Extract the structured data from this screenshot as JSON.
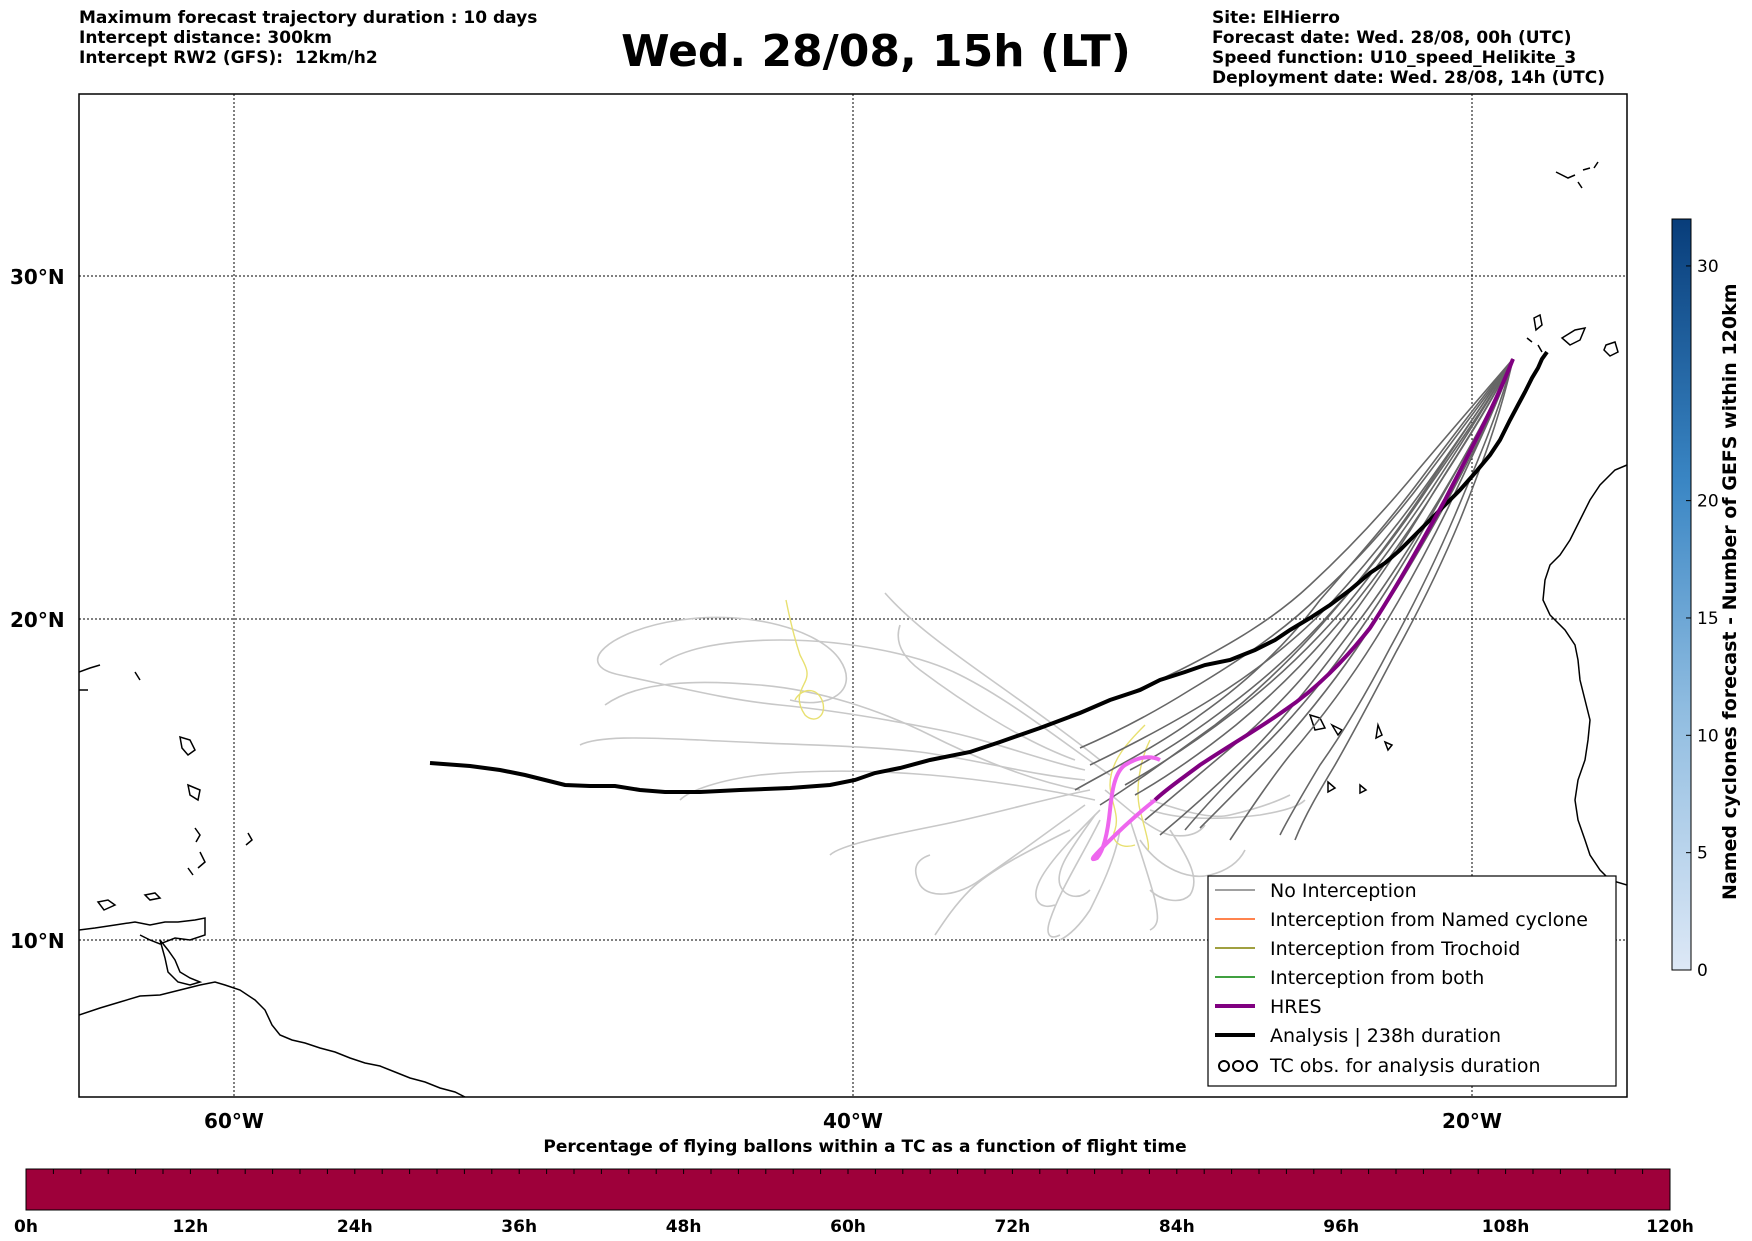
{
  "header": {
    "left_lines": [
      "Maximum forecast trajectory duration : 10 days",
      "Intercept distance: 300km",
      "Intercept RW2 (GFS):  12km/h2"
    ],
    "title": "Wed. 28/08, 15h (LT)",
    "right_lines": [
      "Site: ElHierro",
      "Forecast date: Wed. 28/08, 00h (UTC)",
      "Speed function: U10_speed_Helikite_3",
      "Deployment date: Wed. 28/08, 14h (UTC)"
    ]
  },
  "map": {
    "lat_labels": [
      "30°N",
      "20°N",
      "10°N"
    ],
    "lon_labels": [
      "60°W",
      "40°W",
      "20°W"
    ],
    "grid": "dotted"
  },
  "legend": {
    "items": [
      {
        "label": "No Interception",
        "color": "#808080",
        "style": "thin"
      },
      {
        "label": "Interception from Named cyclone",
        "color": "#ff5a14",
        "style": "thin"
      },
      {
        "label": "Interception from Trochoid",
        "color": "#808000",
        "style": "thin"
      },
      {
        "label": "Interception from both",
        "color": "#008000",
        "style": "thin"
      },
      {
        "label": "HRES",
        "color": "#800080",
        "style": "thick"
      },
      {
        "label": "Analysis | 238h duration",
        "color": "#000000",
        "style": "thick"
      },
      {
        "label": "TC obs. for analysis duration",
        "color": "#000000",
        "style": "cyclone-icon",
        "icon_text": "ઇઇઇ"
      }
    ]
  },
  "colorbar": {
    "label": "Named cyclones forecast - Number of GEFS within 120km",
    "ticks": [
      "0",
      "5",
      "10",
      "15",
      "20",
      "30"
    ]
  },
  "bottom_bar": {
    "title": "Percentage of flying ballons within a TC as a function of flight time",
    "ticks": [
      "0h",
      "12h",
      "24h",
      "36h",
      "48h",
      "60h",
      "72h",
      "84h",
      "96h",
      "108h",
      "120h"
    ],
    "fill_color": "#9e003a"
  },
  "colors": {
    "hres": "#800080",
    "hres_highlight": "#ee66ee",
    "ensemble": "#666666",
    "ensemble_light": "#c8c8c8",
    "analysis": "#000000",
    "trochoid_track": "#e8e070"
  }
}
